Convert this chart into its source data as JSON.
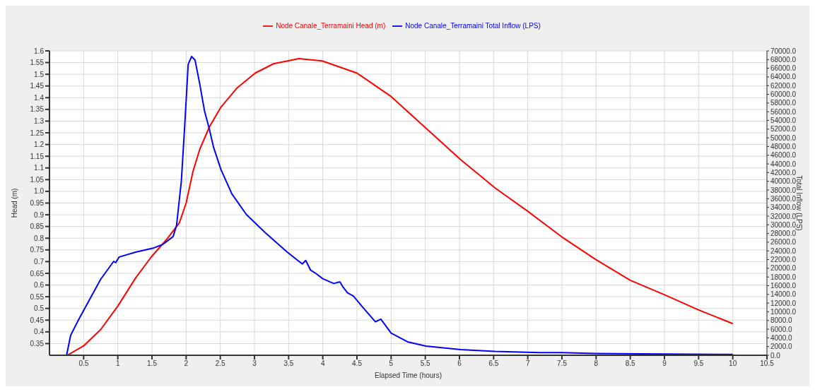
{
  "chart_data": {
    "type": "line",
    "xlabel": "Elapsed Time (hours)",
    "ylabel": "Head (m)",
    "y2label": "Total Inflow (LPS)",
    "xlim": [
      0,
      10.5
    ],
    "xticks": [
      0.5,
      1,
      1.5,
      2,
      2.5,
      3,
      3.5,
      4,
      4.5,
      5,
      5.5,
      6,
      6.5,
      7,
      7.5,
      8,
      8.5,
      9,
      9.5,
      10,
      10.5
    ],
    "ylim": [
      0.3,
      1.6
    ],
    "yticks": [
      0.35,
      0.4,
      0.45,
      0.5,
      0.55,
      0.6,
      0.65,
      0.7,
      0.75,
      0.8,
      0.85,
      0.9,
      0.95,
      {
        "value": 1,
        "label": "1.0"
      },
      1.05,
      1.1,
      1.15,
      1.2,
      1.25,
      1.3,
      1.35,
      1.4,
      1.45,
      1.5,
      1.55,
      1.6
    ],
    "y2lim": [
      0,
      70000
    ],
    "y2ticks": [
      {
        "value": 0,
        "label": "0.0"
      },
      {
        "value": 2000,
        "label": "2000.0"
      },
      {
        "value": 4000,
        "label": "4000.0"
      },
      {
        "value": 6000,
        "label": "6000.0"
      },
      {
        "value": 8000,
        "label": "8000.0"
      },
      {
        "value": 10000,
        "label": "10000.0"
      },
      {
        "value": 12000,
        "label": "12000.0"
      },
      {
        "value": 14000,
        "label": "14000.0"
      },
      {
        "value": 16000,
        "label": "16000.0"
      },
      {
        "value": 18000,
        "label": "18000.0"
      },
      {
        "value": 20000,
        "label": "20000.0"
      },
      {
        "value": 22000,
        "label": "22000.0"
      },
      {
        "value": 24000,
        "label": "24000.0"
      },
      {
        "value": 26000,
        "label": "26000.0"
      },
      {
        "value": 28000,
        "label": "28000.0"
      },
      {
        "value": 30000,
        "label": "30000.0"
      },
      {
        "value": 32000,
        "label": "32000.0"
      },
      {
        "value": 34000,
        "label": "34000.0"
      },
      {
        "value": 36000,
        "label": "36000.0"
      },
      {
        "value": 38000,
        "label": "38000.0"
      },
      {
        "value": 40000,
        "label": "40000.0"
      },
      {
        "value": 42000,
        "label": "42000.0"
      },
      {
        "value": 44000,
        "label": "44000.0"
      },
      {
        "value": 46000,
        "label": "46000.0"
      },
      {
        "value": 48000,
        "label": "48000.0"
      },
      {
        "value": 50000,
        "label": "50000.0"
      },
      {
        "value": 52000,
        "label": "52000.0"
      },
      {
        "value": 54000,
        "label": "54000.0"
      },
      {
        "value": 56000,
        "label": "56000.0"
      },
      {
        "value": 58000,
        "label": "58000.0"
      },
      {
        "value": 60000,
        "label": "60000.0"
      },
      {
        "value": 62000,
        "label": "62000.0"
      },
      {
        "value": 64000,
        "label": "64000.0"
      },
      {
        "value": 66000,
        "label": "66000.0"
      },
      {
        "value": 68000,
        "label": "68000.0"
      },
      {
        "value": 70000,
        "label": "70000.0"
      }
    ],
    "grid": true,
    "legend": "top",
    "marker": "none",
    "line_style": "solid",
    "series": [
      {
        "name": "Node Canale_Terramaini Head (m)",
        "color": "#ff0000",
        "x": [
          0.26,
          0.5,
          0.75,
          1.0,
          1.26,
          1.49,
          1.73,
          1.9,
          2.0,
          2.1,
          2.2,
          2.34,
          2.51,
          2.74,
          3.01,
          3.28,
          3.65,
          3.99,
          4.5,
          5.0,
          5.51,
          6.02,
          6.52,
          7.0,
          7.5,
          7.99,
          8.5,
          8.99,
          9.49,
          10.0
        ],
        "values": [
          0.3,
          0.34,
          0.41,
          0.51,
          0.63,
          0.72,
          0.8,
          0.865,
          0.95,
          1.085,
          1.18,
          1.275,
          1.36,
          1.44,
          1.505,
          1.545,
          1.567,
          1.557,
          1.505,
          1.405,
          1.27,
          1.135,
          1.015,
          0.915,
          0.805,
          0.71,
          0.62,
          0.56,
          0.495,
          0.435
        ]
      },
      {
        "name": "Node Canale_Terramaini Total Inflow (LPS)",
        "color": "#0000ff",
        "axis": "y2",
        "x": [
          0,
          0.25,
          0.31,
          0.41,
          0.5,
          0.75,
          0.94,
          0.97,
          1.02,
          1.26,
          1.53,
          1.66,
          1.81,
          1.86,
          1.93,
          1.98,
          2.03,
          2.08,
          2.13,
          2.2,
          2.27,
          2.34,
          2.4,
          2.51,
          2.67,
          2.88,
          3.15,
          3.48,
          3.7,
          3.75,
          3.82,
          3.9,
          4.0,
          4.16,
          4.25,
          4.3,
          4.36,
          4.45,
          4.57,
          4.77,
          4.85,
          5.0,
          5.24,
          5.51,
          6.02,
          6.52,
          7.2,
          7.5,
          8.0,
          9.0,
          10.0
        ],
        "values": [
          0,
          0,
          4600,
          7700,
          10300,
          17500,
          21600,
          21300,
          22600,
          23700,
          24700,
          25500,
          27300,
          29900,
          40100,
          53000,
          66900,
          68700,
          67900,
          62300,
          56100,
          52000,
          47900,
          42700,
          37100,
          32400,
          28300,
          23700,
          21000,
          21800,
          19600,
          18800,
          17600,
          16500,
          16900,
          15600,
          14400,
          13600,
          11300,
          7700,
          8300,
          5100,
          3100,
          2100,
          1300,
          900,
          600,
          600,
          400,
          300,
          200
        ]
      }
    ]
  }
}
